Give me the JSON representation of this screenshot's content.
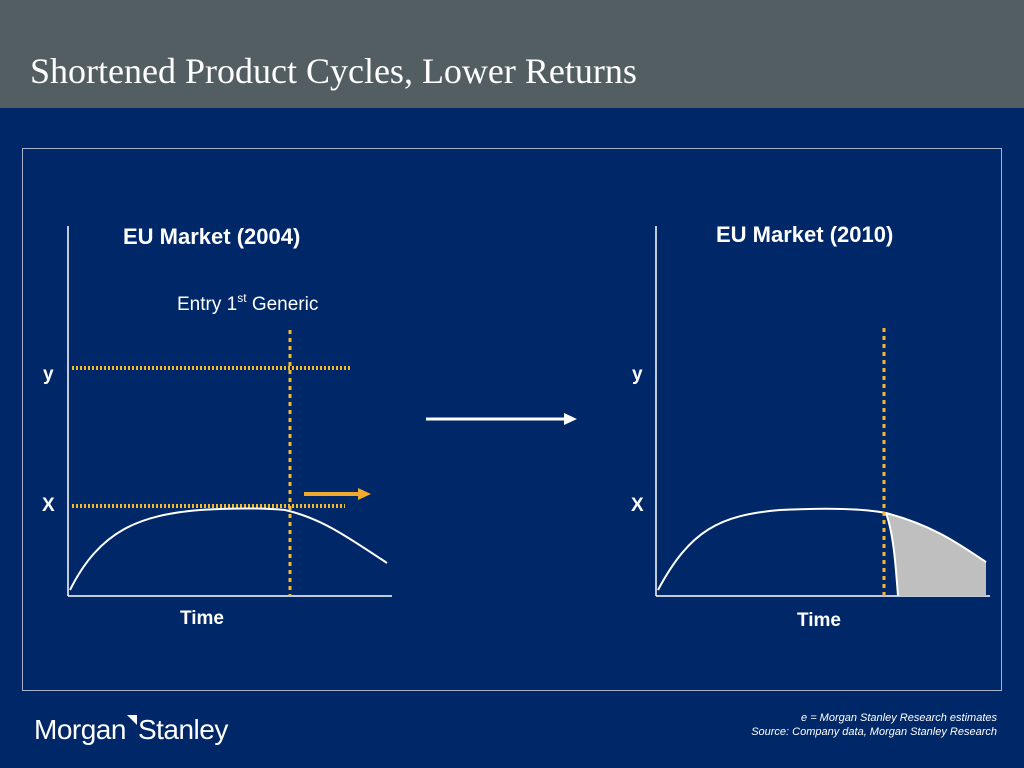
{
  "title": "Shortened Product Cycles, Lower Returns",
  "left_panel": {
    "heading": "EU Market (2004)",
    "entry_label_main": "Entry 1",
    "entry_label_sup": "st",
    "entry_label_end": " Generic",
    "y_label": "y",
    "x_label": "X",
    "time_label": "Time"
  },
  "right_panel": {
    "heading": "EU Market (2010)",
    "y_label": "y",
    "x_label": "X",
    "time_label": "Time"
  },
  "footnotes": {
    "line1": "e = Morgan Stanley Research estimates",
    "line2": "Source: Company data, Morgan Stanley Research"
  },
  "logo": {
    "part1": "Morgan",
    "part2": "Stanley"
  },
  "colors": {
    "background": "#002868",
    "title_bar": "#535e62",
    "dotted_line": "#f5b82e",
    "arrow_accent": "#f0a830",
    "curve": "#ffffff",
    "shaded_area": "#bfbfbf"
  }
}
